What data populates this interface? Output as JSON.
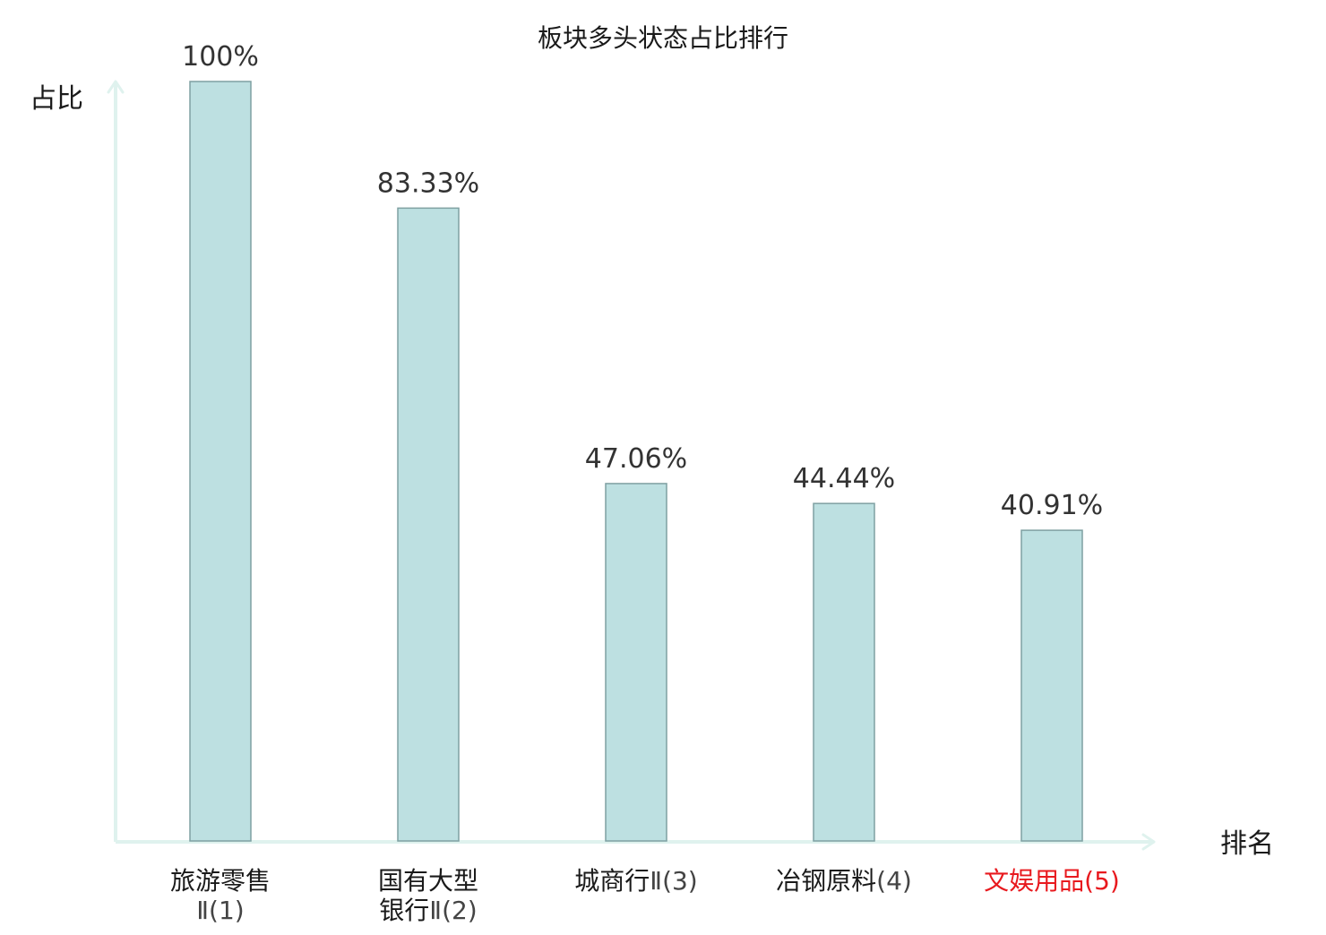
{
  "chart_data": {
    "type": "bar",
    "title": "板块多头状态占比排行",
    "ylabel": "占比",
    "xlabel": "排名",
    "ylim": [
      0,
      100
    ],
    "grid": false,
    "legend": "none",
    "categories": [
      {
        "name_lines": [
          "旅游零售"
        ],
        "suffix": "Ⅱ(1)",
        "highlight": false
      },
      {
        "name_lines": [
          "国有大型"
        ],
        "suffix": "银行Ⅱ(2)",
        "highlight": false
      },
      {
        "name_lines": [
          "城商行"
        ],
        "suffix": "Ⅱ(3)",
        "highlight": false
      },
      {
        "name_lines": [
          "冶钢原料"
        ],
        "suffix": "(4)",
        "highlight": false
      },
      {
        "name_lines": [
          "文娱用品"
        ],
        "suffix": "(5)",
        "highlight": true
      }
    ],
    "values": [
      100,
      83.33,
      47.06,
      44.44,
      40.91
    ],
    "value_labels": [
      "100%",
      "83.33%",
      "47.06%",
      "44.44%",
      "40.91%"
    ],
    "colors": {
      "bar_fill": "#bde0e1",
      "bar_stroke": "#7fa0a2",
      "axis": "#dff2ee",
      "text": "#1a1a1a",
      "value_text": "#333333",
      "suffix_text": "#444444",
      "highlight": "#e8191e"
    }
  }
}
